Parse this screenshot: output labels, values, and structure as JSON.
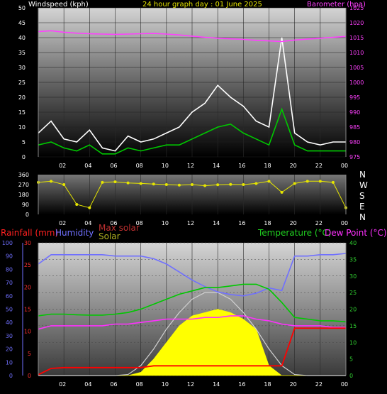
{
  "header": {
    "windspeed_label": "Windspeed (kph)",
    "title": "24 hour graph day : 01 June 2025",
    "barometer_label": "Barometer (hpa)"
  },
  "compass": [
    "N",
    "W",
    "S",
    "E",
    "N"
  ],
  "legend": {
    "rainfall": "Rainfall (mm)",
    "humidity": "Humidity",
    "max_solar": "Max solar",
    "solar": "Solar",
    "temperature": "Temperature (°C)",
    "dew_point": "Dew Point (°C)"
  },
  "colors": {
    "wind_gust": "#ffffff",
    "wind_avg": "#00c800",
    "barometer": "#ff40ff",
    "direction": "#e6e600",
    "rainfall": "#ff0000",
    "humidity": "#7070ff",
    "max_solar": "#d0d0d0",
    "solar": "#ffff00",
    "temperature": "#00c800",
    "dew_point": "#ff30ff",
    "rain_axis": "#ff3030",
    "humidity_axis": "#7070ff",
    "temp_axis": "#30d030"
  },
  "chart_data": [
    {
      "type": "line",
      "title": "24 hour graph day : 01 June 2025",
      "ylabel": "Windspeed (kph)",
      "ylim": [
        0,
        50
      ],
      "y_ticks": [
        "0",
        "5",
        "10",
        "15",
        "20",
        "25",
        "30",
        "35",
        "40",
        "45",
        "50"
      ],
      "y2label": "Barometer (hpa)",
      "y2lim": [
        975,
        1025
      ],
      "y2_ticks": [
        "975",
        "980",
        "985",
        "990",
        "995",
        "1000",
        "1005",
        "1010",
        "1015",
        "1020",
        "1025"
      ],
      "x_ticks": [
        "02",
        "04",
        "06",
        "08",
        "10",
        "12",
        "14",
        "16",
        "18",
        "20",
        "22",
        "00"
      ],
      "x_hours": [
        0,
        1,
        2,
        3,
        4,
        5,
        6,
        7,
        8,
        9,
        10,
        11,
        12,
        13,
        14,
        15,
        16,
        17,
        18,
        19,
        20,
        21,
        22,
        23,
        24
      ],
      "series": [
        {
          "name": "gust",
          "values": [
            8,
            12,
            6,
            5,
            9,
            3,
            2,
            7,
            5,
            6,
            8,
            10,
            15,
            18,
            24,
            20,
            17,
            12,
            10,
            40,
            8,
            5,
            4,
            5,
            5
          ]
        },
        {
          "name": "average",
          "values": [
            4,
            5,
            3,
            2,
            4,
            1,
            1,
            3,
            2,
            3,
            4,
            4,
            6,
            8,
            10,
            11,
            8,
            6,
            4,
            16,
            4,
            2,
            2,
            2,
            2
          ]
        },
        {
          "name": "barometer",
          "values": [
            1017,
            1017.3,
            1016.8,
            1016.5,
            1016.3,
            1016.2,
            1016.1,
            1016.2,
            1016.3,
            1016.4,
            1016.2,
            1015.9,
            1015.5,
            1015.1,
            1014.8,
            1014.6,
            1014.4,
            1014.1,
            1013.9,
            1013.7,
            1014.2,
            1014.5,
            1014.8,
            1015.1,
            1015.4
          ]
        }
      ]
    },
    {
      "type": "scatter",
      "ylabel": "Wind direction",
      "ylim": [
        0,
        360
      ],
      "y_ticks": [
        "0",
        "90",
        "180",
        "270",
        "360"
      ],
      "x_ticks": [
        "02",
        "04",
        "06",
        "08",
        "10",
        "12",
        "14",
        "16",
        "18",
        "20",
        "22",
        "00"
      ],
      "x_hours": [
        0,
        1,
        2,
        3,
        4,
        5,
        6,
        7,
        8,
        9,
        10,
        11,
        12,
        13,
        14,
        15,
        16,
        17,
        18,
        19,
        20,
        21,
        22,
        23,
        24
      ],
      "series": [
        {
          "name": "direction",
          "values": [
            290,
            300,
            270,
            90,
            60,
            290,
            295,
            285,
            280,
            275,
            270,
            265,
            270,
            260,
            268,
            272,
            270,
            280,
            300,
            200,
            280,
            300,
            300,
            290,
            60
          ]
        }
      ]
    },
    {
      "type": "line",
      "ylabel": "Rainfall (mm)",
      "ylim": [
        0,
        30
      ],
      "y_ticks": [
        "0",
        "5",
        "10",
        "15",
        "20",
        "25",
        "30"
      ],
      "humidity_ylim": [
        0,
        100
      ],
      "humidity_ticks": [
        "0",
        "10",
        "20",
        "30",
        "40",
        "50",
        "60",
        "70",
        "80",
        "90",
        "100"
      ],
      "y2label": "Temperature (°C)",
      "y2lim": [
        0,
        40
      ],
      "y2_ticks": [
        "0",
        "5",
        "10",
        "15",
        "20",
        "25",
        "30",
        "35",
        "40"
      ],
      "x_ticks": [
        "02",
        "04",
        "06",
        "08",
        "10",
        "12",
        "14",
        "16",
        "18",
        "20",
        "22",
        "00"
      ],
      "x_hours": [
        0,
        1,
        2,
        3,
        4,
        5,
        6,
        7,
        8,
        9,
        10,
        11,
        12,
        13,
        14,
        15,
        16,
        17,
        18,
        19,
        20,
        21,
        22,
        23,
        24
      ],
      "series": [
        {
          "name": "Rainfall",
          "values": [
            0.2,
            1.6,
            1.8,
            1.8,
            1.8,
            1.8,
            1.8,
            1.8,
            1.8,
            2.2,
            2.2,
            2.2,
            2.2,
            2.2,
            2.2,
            2.2,
            2.2,
            2.2,
            2.2,
            2.2,
            10.7,
            10.7,
            10.7,
            10.7,
            10.7
          ]
        },
        {
          "name": "Humidity",
          "values": [
            84,
            91,
            91,
            91,
            91,
            91,
            90,
            90,
            90,
            88,
            84,
            78,
            72,
            67,
            63,
            61,
            60,
            62,
            66,
            64,
            90,
            90,
            91,
            91,
            92
          ]
        },
        {
          "name": "Max solar",
          "values": [
            0,
            0,
            0,
            0,
            0,
            0,
            0,
            0.3,
            3,
            8,
            14,
            19,
            23,
            25,
            25,
            23,
            19,
            14,
            8,
            3,
            0.3,
            0,
            0,
            0,
            0
          ]
        },
        {
          "name": "Solar",
          "values": [
            0,
            0,
            0,
            0,
            0,
            0,
            0,
            0,
            1,
            5,
            10,
            15,
            18,
            19,
            20,
            19,
            17,
            14,
            3,
            0,
            0,
            0,
            0,
            0,
            0
          ]
        },
        {
          "name": "Temperature",
          "values": [
            18,
            18.5,
            18.5,
            18.3,
            18.2,
            18.2,
            18.5,
            19,
            20,
            21.5,
            23,
            24.5,
            25.5,
            26.5,
            26.5,
            27,
            27.5,
            27.5,
            26,
            22,
            17.5,
            17,
            16.5,
            16.5,
            16.2
          ]
        },
        {
          "name": "Dew Point",
          "values": [
            14,
            15,
            15,
            15,
            15,
            15,
            15.5,
            15.5,
            16,
            16.5,
            17,
            17,
            17,
            17.5,
            17.5,
            18,
            18,
            17,
            16.5,
            15.5,
            15,
            15,
            15,
            14.5,
            14.5
          ]
        }
      ]
    }
  ]
}
